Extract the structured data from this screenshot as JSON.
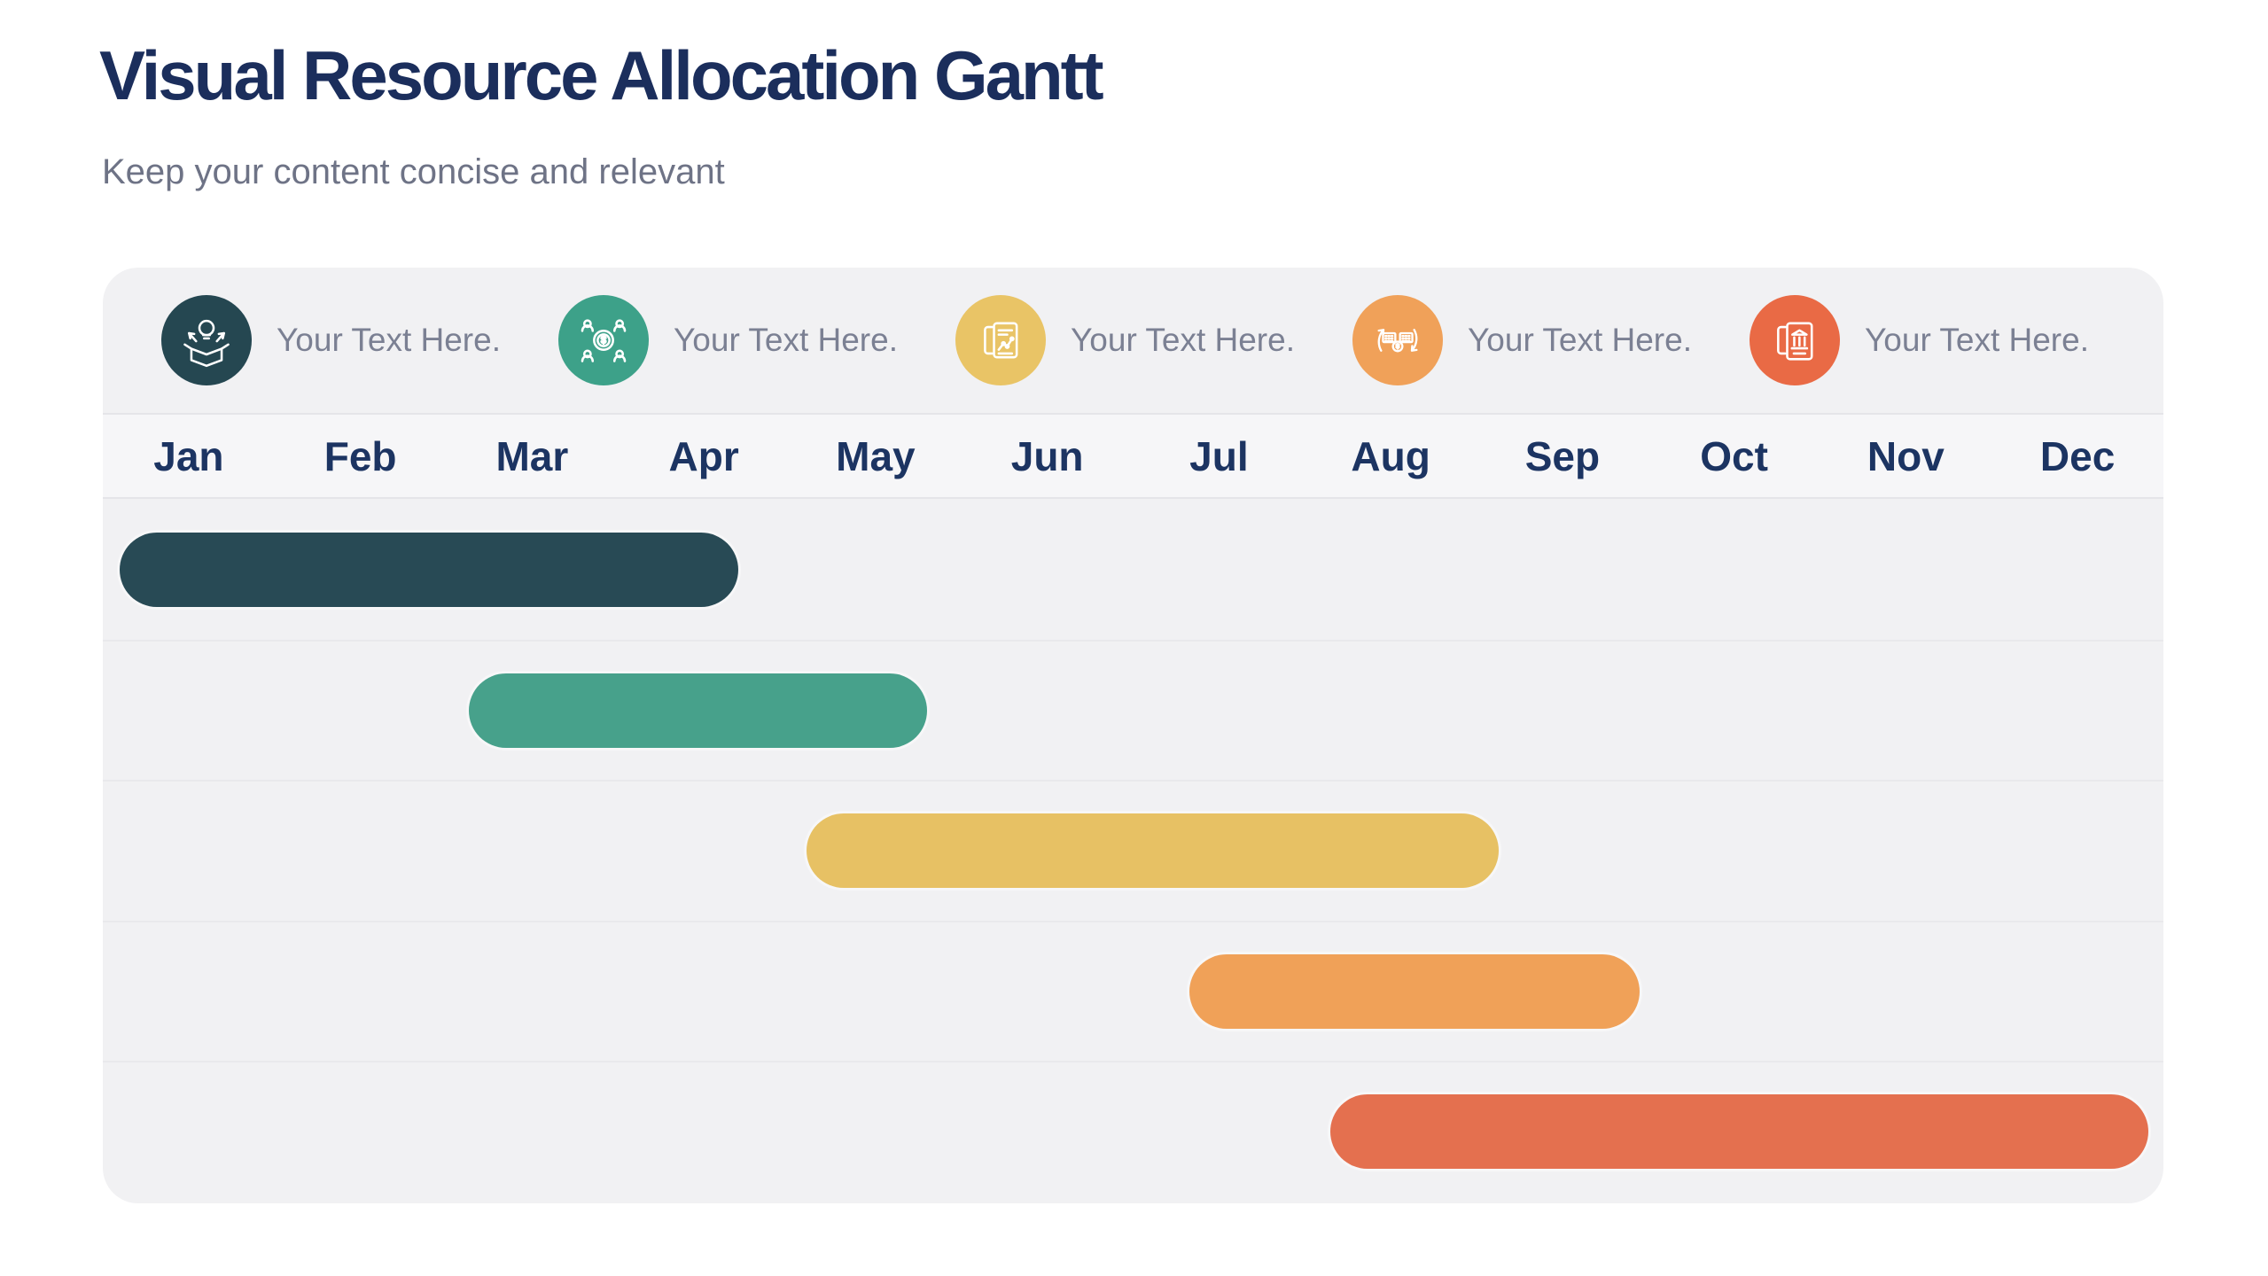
{
  "page": {
    "title": "Visual Resource Allocation Gantt",
    "subtitle": "Keep your content concise and relevant"
  },
  "colors": {
    "page_background": "#ffffff",
    "panel_background": "#f1f1f3",
    "month_row_background": "#f6f6f8",
    "title_text": "#1b2e5c",
    "subtitle_text": "#6e7386",
    "month_label_text": "#1c3462",
    "legend_label_text": "#7b8093",
    "divider": "#e5e5e9"
  },
  "legend": {
    "items": [
      {
        "icon": "idea-box-icon",
        "label": "Your Text Here.",
        "color": "#254751"
      },
      {
        "icon": "funding-people-icon",
        "label": "Your Text Here.",
        "color": "#3da189"
      },
      {
        "icon": "report-chart-icon",
        "label": "Your Text Here.",
        "color": "#e9c466"
      },
      {
        "icon": "cash-cycle-icon",
        "label": "Your Text Here.",
        "color": "#f0a159"
      },
      {
        "icon": "bank-statement-icon",
        "label": "Your Text Here.",
        "color": "#e96a45"
      }
    ]
  },
  "chart_data": {
    "type": "bar",
    "subtype": "gantt",
    "title": "Visual Resource Allocation Gantt",
    "x_axis": {
      "unit": "month",
      "range_months": [
        0,
        12
      ],
      "tick_labels": [
        "Jan",
        "Feb",
        "Mar",
        "Apr",
        "May",
        "Jun",
        "Jul",
        "Aug",
        "Sep",
        "Oct",
        "Nov",
        "Dec"
      ]
    },
    "legend_position": "top",
    "grid": "horizontal-row-dividers",
    "rows": [
      {
        "start_month": 0.1,
        "end_month": 3.7,
        "color": "#284a55"
      },
      {
        "start_month": 2.13,
        "end_month": 4.8,
        "color": "#47a18b"
      },
      {
        "start_month": 4.1,
        "end_month": 8.13,
        "color": "#e7c164"
      },
      {
        "start_month": 6.33,
        "end_month": 8.95,
        "color": "#f0a158"
      },
      {
        "start_month": 7.15,
        "end_month": 11.91,
        "color": "#e4704f"
      }
    ]
  }
}
